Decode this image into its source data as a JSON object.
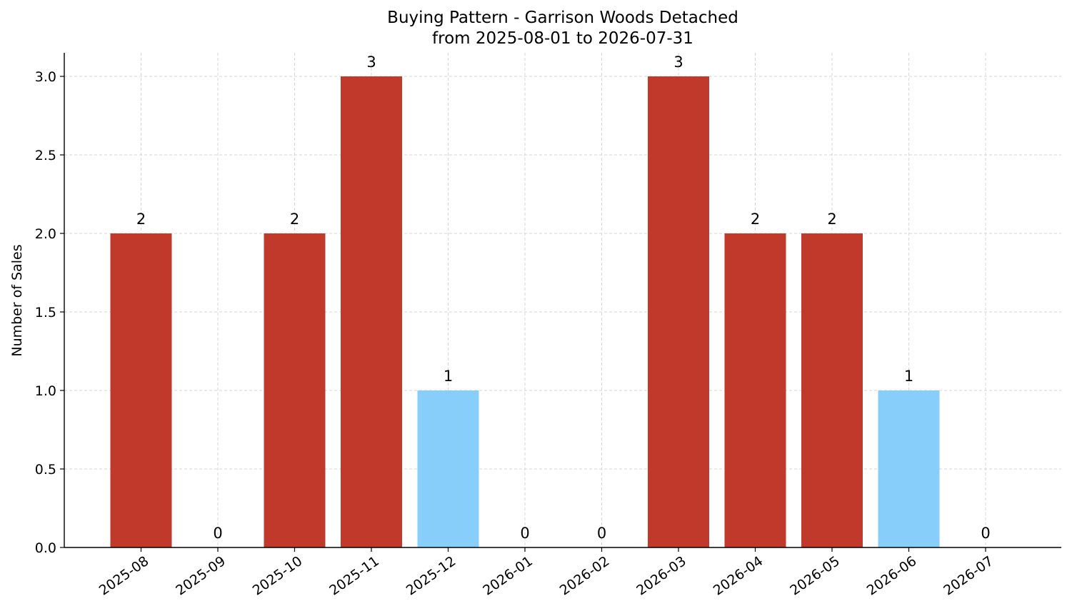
{
  "chart_data": {
    "type": "bar",
    "title": "Buying Pattern - Garrison Woods Detached",
    "subtitle": "from 2025-08-01 to 2026-07-31",
    "xlabel": "",
    "ylabel": "Number of Sales",
    "ylim": [
      0,
      3.15
    ],
    "yticks": [
      "0.0",
      "0.5",
      "1.0",
      "1.5",
      "2.0",
      "2.5",
      "3.0"
    ],
    "grid": true,
    "categories": [
      "2025-08",
      "2025-09",
      "2025-10",
      "2025-11",
      "2025-12",
      "2026-01",
      "2026-02",
      "2026-03",
      "2026-04",
      "2026-05",
      "2026-06",
      "2026-07"
    ],
    "values": [
      2,
      0,
      2,
      3,
      1,
      0,
      0,
      3,
      2,
      2,
      1,
      0
    ],
    "bar_colors": [
      "#c0392b",
      "#c0392b",
      "#c0392b",
      "#c0392b",
      "#87cefa",
      "#c0392b",
      "#c0392b",
      "#c0392b",
      "#c0392b",
      "#c0392b",
      "#87cefa",
      "#c0392b"
    ]
  }
}
